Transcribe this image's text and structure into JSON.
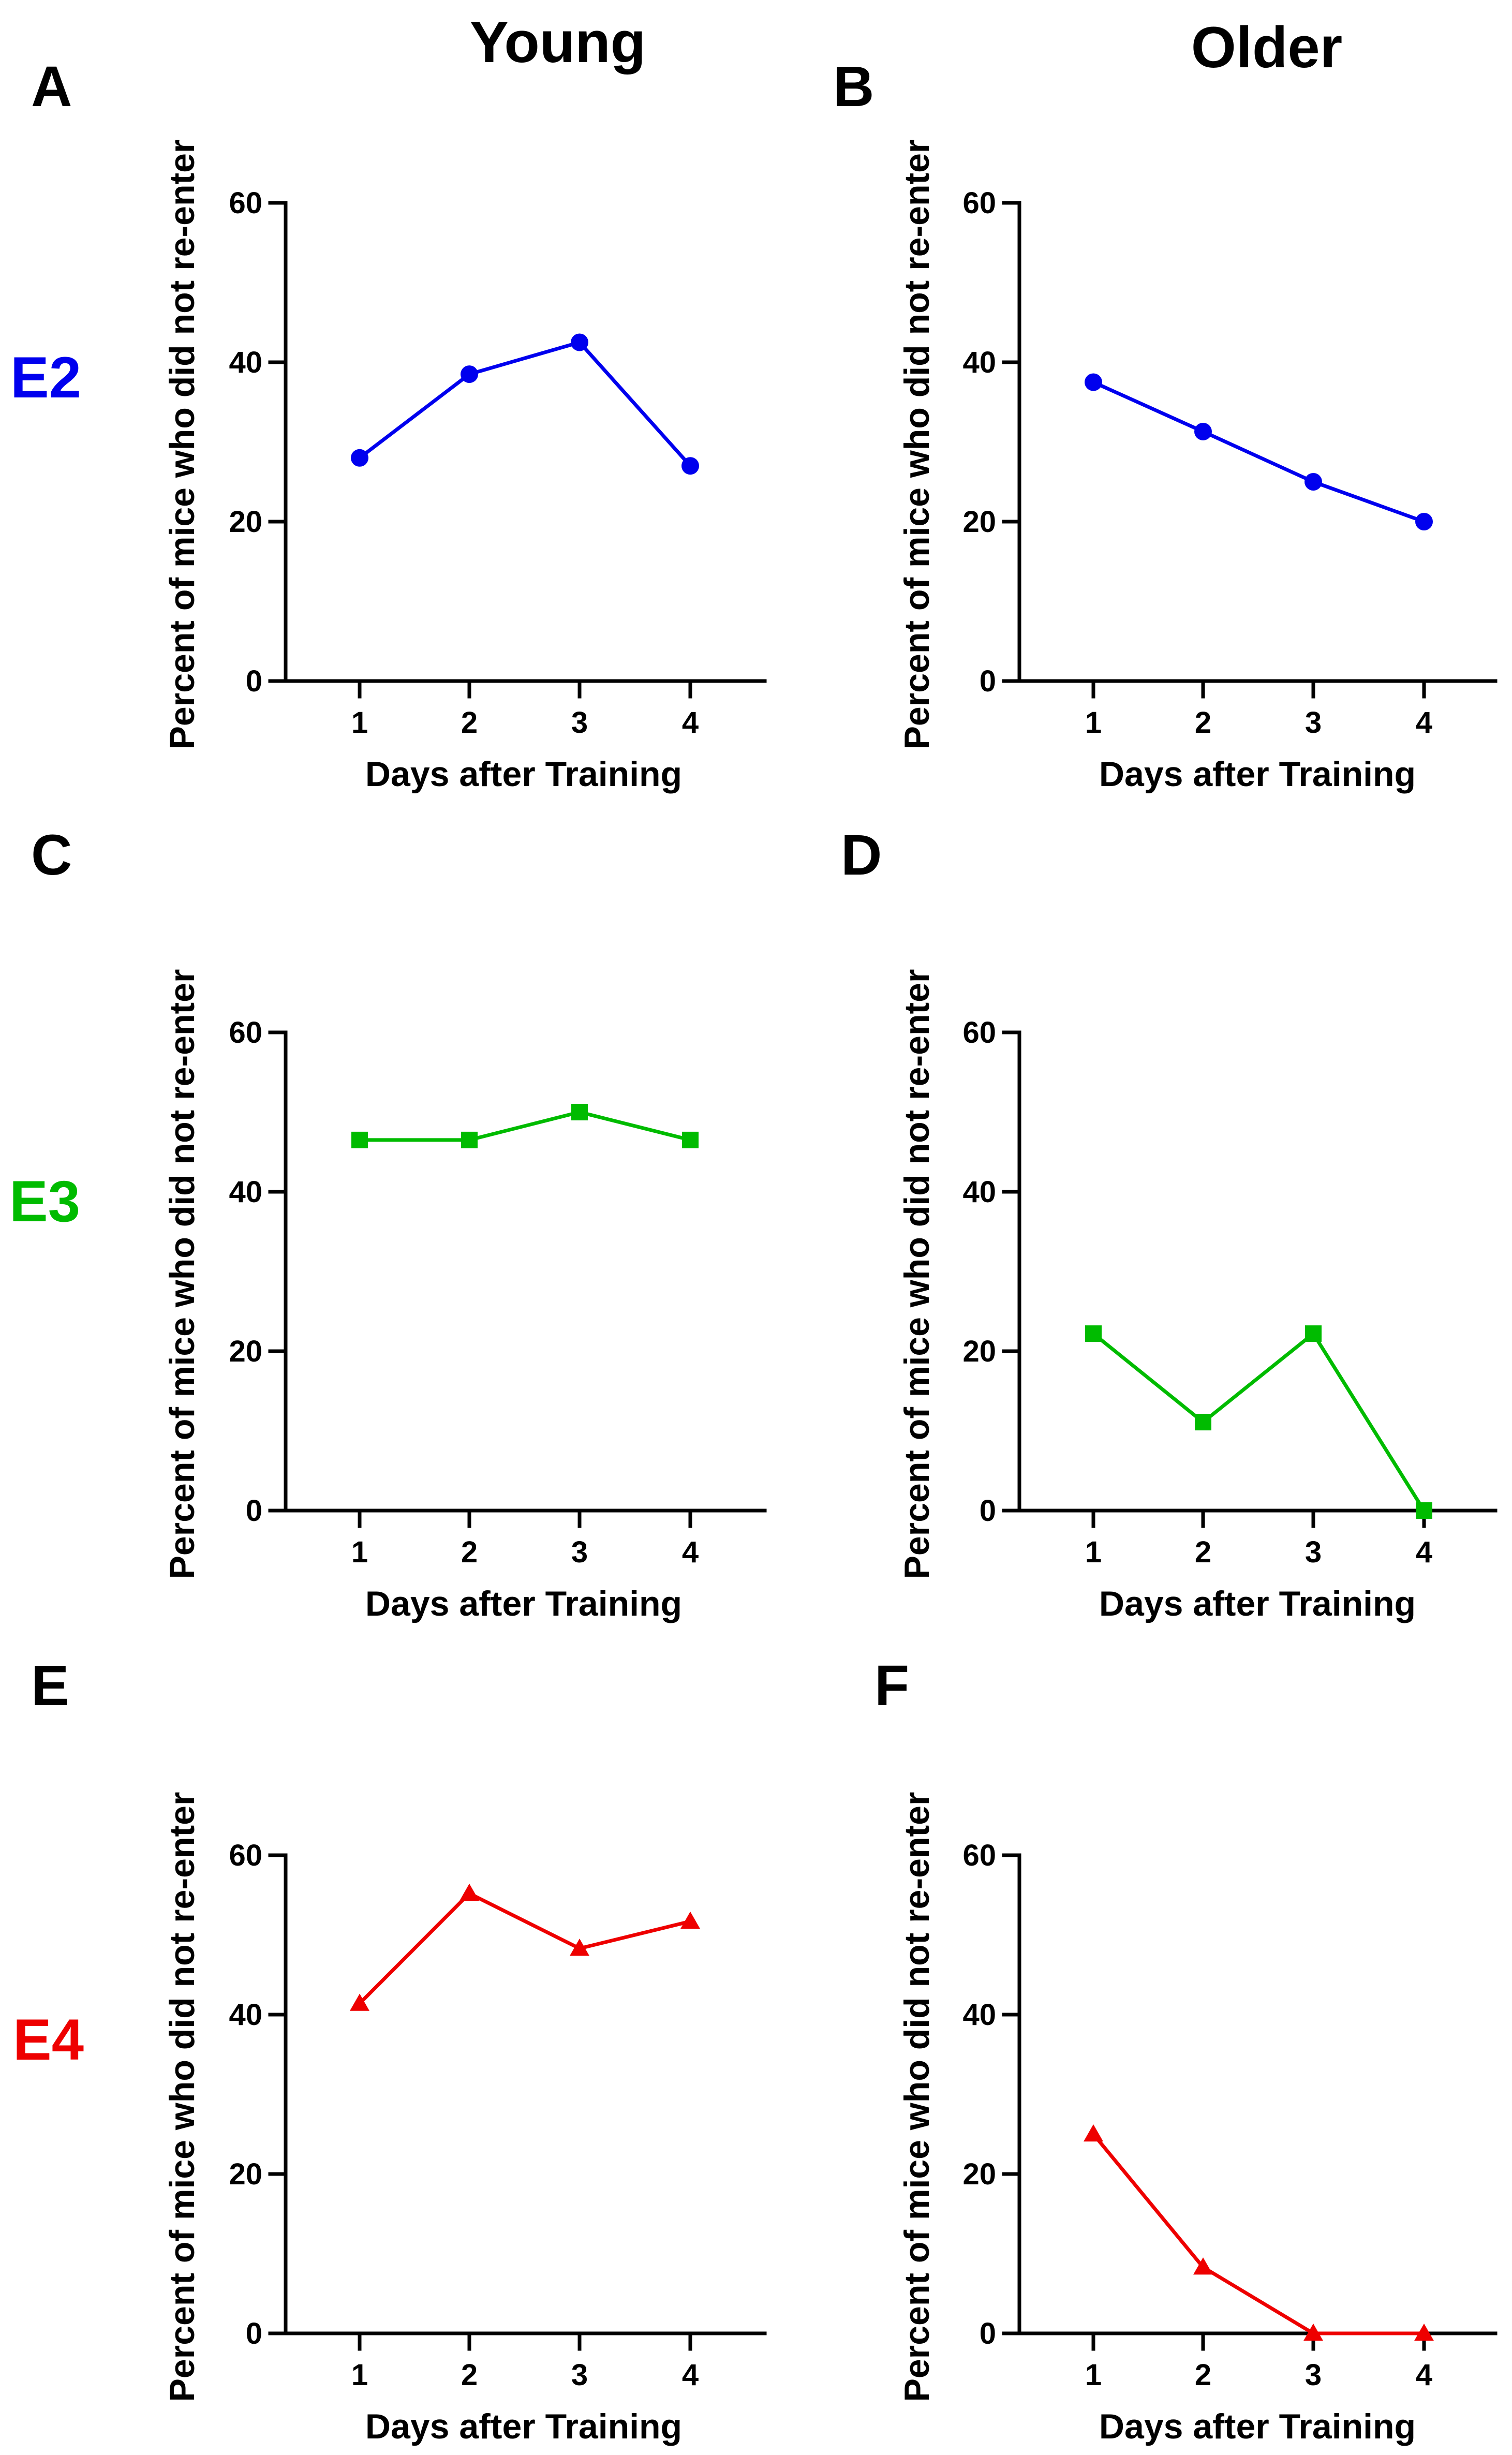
{
  "column_headers": [
    "Young",
    "Older"
  ],
  "row_labels": [
    {
      "text": "E2",
      "color": "#0000ee"
    },
    {
      "text": "E3",
      "color": "#00bb00"
    },
    {
      "text": "E4",
      "color": "#ee0000"
    }
  ],
  "chart_data": [
    {
      "panel": "A",
      "type": "line",
      "group": "Young",
      "genotype": "E2",
      "marker": "circle",
      "color": "#0000ee",
      "x": [
        1,
        2,
        3,
        4
      ],
      "categories": [
        "1",
        "2",
        "3",
        "4"
      ],
      "values": [
        28,
        38.5,
        42.5,
        27
      ],
      "xlabel": "Days after Training",
      "ylabel": "Percent of mice who did not re-enter",
      "ylim": [
        0,
        60
      ],
      "yticks": [
        0,
        20,
        40,
        60
      ]
    },
    {
      "panel": "B",
      "type": "line",
      "group": "Older",
      "genotype": "E2",
      "marker": "circle",
      "color": "#0000ee",
      "x": [
        1,
        2,
        3,
        4
      ],
      "categories": [
        "1",
        "2",
        "3",
        "4"
      ],
      "values": [
        37.5,
        31.3,
        25,
        20
      ],
      "xlabel": "Days after Training",
      "ylabel": "Percent of mice who did not re-enter",
      "ylim": [
        0,
        60
      ],
      "yticks": [
        0,
        20,
        40,
        60
      ]
    },
    {
      "panel": "C",
      "type": "line",
      "group": "Young",
      "genotype": "E3",
      "marker": "square",
      "color": "#00bb00",
      "x": [
        1,
        2,
        3,
        4
      ],
      "categories": [
        "1",
        "2",
        "3",
        "4"
      ],
      "values": [
        46.5,
        46.5,
        50,
        46.5
      ],
      "xlabel": "Days after Training",
      "ylabel": "Percent of mice who did not re-enter",
      "ylim": [
        0,
        60
      ],
      "yticks": [
        0,
        20,
        40,
        60
      ]
    },
    {
      "panel": "D",
      "type": "line",
      "group": "Older",
      "genotype": "E3",
      "marker": "square",
      "color": "#00bb00",
      "x": [
        1,
        2,
        3,
        4
      ],
      "categories": [
        "1",
        "2",
        "3",
        "4"
      ],
      "values": [
        22.2,
        11.1,
        22.2,
        0
      ],
      "xlabel": "Days after Training",
      "ylabel": "Percent of mice who did not re-enter",
      "ylim": [
        0,
        60
      ],
      "yticks": [
        0,
        20,
        40,
        60
      ]
    },
    {
      "panel": "E",
      "type": "line",
      "group": "Young",
      "genotype": "E4",
      "marker": "triangle",
      "color": "#ee0000",
      "x": [
        1,
        2,
        3,
        4
      ],
      "categories": [
        "1",
        "2",
        "3",
        "4"
      ],
      "values": [
        41.4,
        55.2,
        48.3,
        51.7
      ],
      "xlabel": "Days after Training",
      "ylabel": "Percent of mice who did not re-enter",
      "ylim": [
        0,
        60
      ],
      "yticks": [
        0,
        20,
        40,
        60
      ]
    },
    {
      "panel": "F",
      "type": "line",
      "group": "Older",
      "genotype": "E4",
      "marker": "triangle",
      "color": "#ee0000",
      "x": [
        1,
        2,
        3,
        4
      ],
      "categories": [
        "1",
        "2",
        "3",
        "4"
      ],
      "values": [
        25,
        8.3,
        0,
        0
      ],
      "xlabel": "Days after Training",
      "ylabel": "Percent of mice who did not re-enter",
      "ylim": [
        0,
        60
      ],
      "yticks": [
        0,
        20,
        40,
        60
      ]
    }
  ]
}
